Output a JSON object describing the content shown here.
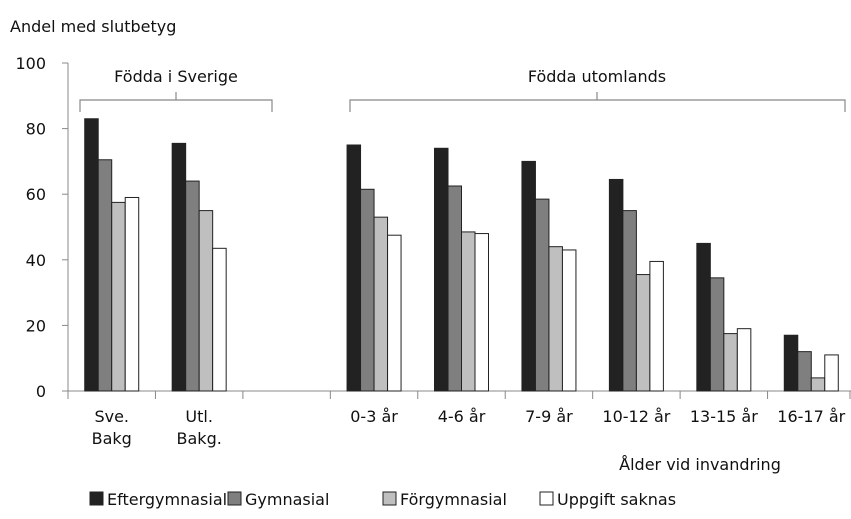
{
  "chart_data": {
    "type": "bar",
    "y_label": "Andel med slutbetyg",
    "x_label": "Ålder vid invandring",
    "annotations": [
      "Födda i Sverige",
      "Födda utomlands"
    ],
    "categories": [
      "Sve.\nBakg",
      "Utl.\nBakg.",
      null,
      "0-3 år",
      "4-6 år",
      "7-9 år",
      "10-12 år",
      "13-15 år",
      "16-17 år"
    ],
    "series": [
      {
        "name": "Eftergymnasial",
        "color": "#222222",
        "values": [
          83,
          75.5,
          null,
          75,
          74,
          70,
          64.5,
          45,
          17
        ]
      },
      {
        "name": "Gymnasial",
        "color": "#7f7f7f",
        "values": [
          70.5,
          64,
          null,
          61.5,
          62.5,
          58.5,
          55,
          34.5,
          12
        ]
      },
      {
        "name": "Förgymnasial",
        "color": "#bfbfbf",
        "values": [
          57.5,
          55,
          null,
          53,
          48.5,
          44,
          35.5,
          17.5,
          4
        ]
      },
      {
        "name": "Uppgift saknas",
        "color": "#ffffff",
        "values": [
          59,
          43.5,
          null,
          47.5,
          48,
          43,
          39.5,
          19,
          11
        ]
      }
    ],
    "ylim": [
      0,
      100
    ],
    "yticks": [
      0,
      20,
      40,
      60,
      80,
      100
    ],
    "grid": false,
    "legend": "bottom"
  }
}
